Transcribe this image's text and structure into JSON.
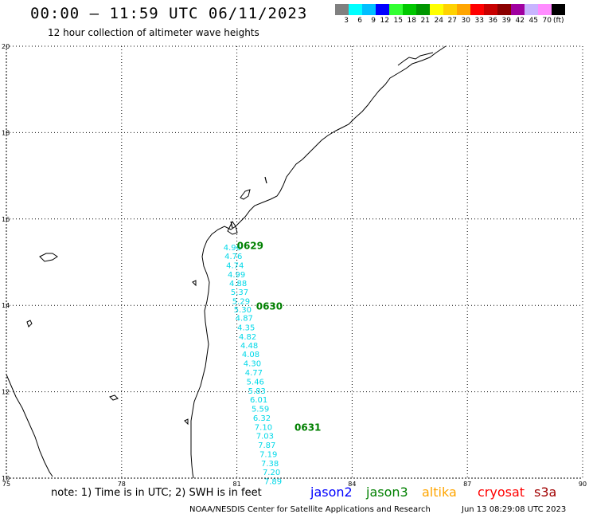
{
  "header": {
    "title": "00:00 – 11:59 UTC 06/11/2023",
    "subtitle": "12 hour collection of altimeter wave heights"
  },
  "color_scale": {
    "colors": [
      "#808080",
      "#00ffff",
      "#00bfff",
      "#0000ff",
      "#32ff32",
      "#00c800",
      "#009600",
      "#ffff00",
      "#ffd200",
      "#ffa500",
      "#ff0000",
      "#c80000",
      "#8b0000",
      "#a000a0",
      "#c8b4ff",
      "#ff8cff",
      "#000000"
    ],
    "labels": [
      "3",
      "6",
      "9",
      "12",
      "15",
      "18",
      "21",
      "24",
      "27",
      "30",
      "33",
      "36",
      "39",
      "42",
      "45",
      "70"
    ],
    "unit": "(ft)"
  },
  "axes": {
    "lon_labels": [
      "75",
      "78",
      "81",
      "84",
      "87",
      "90"
    ],
    "lat_labels": [
      "20",
      "18",
      "16",
      "14",
      "12",
      "10"
    ]
  },
  "track": {
    "color": "#00d8e8",
    "label_color": "#008000",
    "pass_labels": [
      {
        "text": "0629",
        "lat": 15.3,
        "lon": 81.0
      },
      {
        "text": "0630",
        "lat": 13.9,
        "lon": 81.5
      },
      {
        "text": "0631",
        "lat": 11.1,
        "lon": 82.5
      }
    ],
    "points": [
      {
        "lon": 80.65,
        "lat": 15.28,
        "swh": "4.96"
      },
      {
        "lon": 80.68,
        "lat": 15.07,
        "swh": "4.76"
      },
      {
        "lon": 80.72,
        "lat": 14.86,
        "swh": "4.74"
      },
      {
        "lon": 80.76,
        "lat": 14.65,
        "swh": "4.99"
      },
      {
        "lon": 80.8,
        "lat": 14.45,
        "swh": "4.88"
      },
      {
        "lon": 80.84,
        "lat": 14.24,
        "swh": "5.37"
      },
      {
        "lon": 80.88,
        "lat": 14.03,
        "swh": "5.29"
      },
      {
        "lon": 80.92,
        "lat": 13.84,
        "swh": "5.30"
      },
      {
        "lon": 80.96,
        "lat": 13.64,
        "swh": "4.87"
      },
      {
        "lon": 81.01,
        "lat": 13.42,
        "swh": "4.35"
      },
      {
        "lon": 81.05,
        "lat": 13.21,
        "swh": "4.82"
      },
      {
        "lon": 81.09,
        "lat": 13.01,
        "swh": "4.48"
      },
      {
        "lon": 81.13,
        "lat": 12.8,
        "swh": "4.08"
      },
      {
        "lon": 81.17,
        "lat": 12.59,
        "swh": "4.30"
      },
      {
        "lon": 81.21,
        "lat": 12.38,
        "swh": "4.77"
      },
      {
        "lon": 81.25,
        "lat": 12.17,
        "swh": "5.46"
      },
      {
        "lon": 81.29,
        "lat": 11.96,
        "swh": "5.83"
      },
      {
        "lon": 81.34,
        "lat": 11.75,
        "swh": "6.01"
      },
      {
        "lon": 81.38,
        "lat": 11.54,
        "swh": "5.59"
      },
      {
        "lon": 81.42,
        "lat": 11.33,
        "swh": "6.32"
      },
      {
        "lon": 81.46,
        "lat": 11.12,
        "swh": "7.10"
      },
      {
        "lon": 81.5,
        "lat": 10.91,
        "swh": "7.03"
      },
      {
        "lon": 81.55,
        "lat": 10.7,
        "swh": "7.87"
      },
      {
        "lon": 81.59,
        "lat": 10.49,
        "swh": "7.19"
      },
      {
        "lon": 81.63,
        "lat": 10.28,
        "swh": "7.38"
      },
      {
        "lon": 81.67,
        "lat": 10.07,
        "swh": "7.20"
      },
      {
        "lon": 81.71,
        "lat": 9.86,
        "swh": "7.89"
      }
    ]
  },
  "footer": {
    "note": "note: 1) Time is in UTC; 2) SWH is in feet",
    "satellites": [
      {
        "name": "jason2",
        "color": "#0000ff"
      },
      {
        "name": "jason3",
        "color": "#008000"
      },
      {
        "name": "altika",
        "color": "#ffa500"
      },
      {
        "name": "cryosat",
        "color": "#ff0000"
      },
      {
        "name": "s3a",
        "color": "#a00000"
      }
    ],
    "credit": "NOAA/NESDIS Center for Satellite Applications and Research",
    "date": "Jun 13 08:29:08 UTC 2023"
  }
}
